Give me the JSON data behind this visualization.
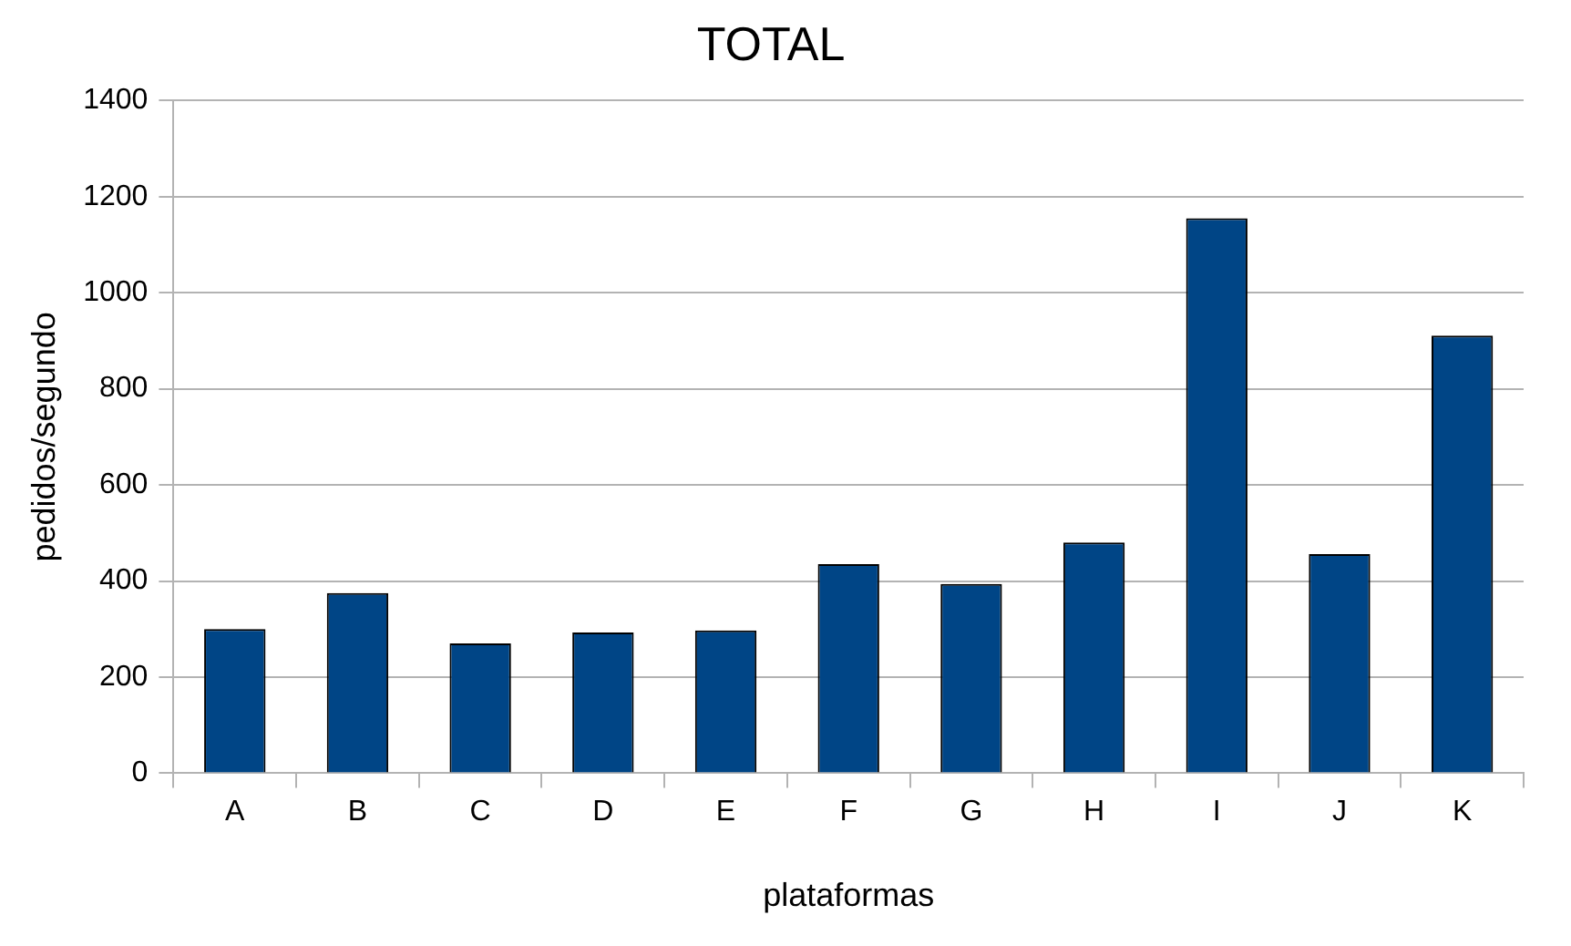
{
  "chart_data": {
    "type": "bar",
    "title": "TOTAL",
    "xlabel": "plataformas",
    "ylabel": "pedidos/segundo",
    "categories": [
      "A",
      "B",
      "C",
      "D",
      "E",
      "F",
      "G",
      "H",
      "I",
      "J",
      "K"
    ],
    "values": [
      300,
      375,
      270,
      293,
      297,
      435,
      394,
      480,
      1155,
      456,
      911
    ],
    "color": "#004586",
    "ylim": [
      0,
      1400
    ],
    "yticks": [
      0,
      200,
      400,
      600,
      800,
      1000,
      1200,
      1400
    ],
    "grid": "y"
  }
}
